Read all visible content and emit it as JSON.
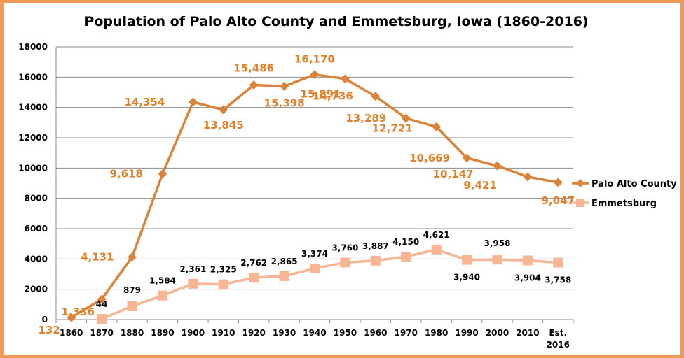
{
  "chart_data": {
    "type": "line",
    "title": "Population of Palo Alto County and Emmetsburg, Iowa (1860-2016)",
    "xlabel": "",
    "ylabel": "",
    "categories": [
      "1860",
      "1870",
      "1880",
      "1890",
      "1900",
      "1910",
      "1920",
      "1930",
      "1940",
      "1950",
      "1960",
      "1970",
      "1980",
      "1990",
      "2000",
      "2010",
      "Est. 2016"
    ],
    "ylim": [
      0,
      18000
    ],
    "yticks": [
      0,
      2000,
      4000,
      6000,
      8000,
      10000,
      12000,
      14000,
      16000,
      18000
    ],
    "grid": true,
    "legend": "right",
    "series": [
      {
        "name": "Palo Alto County",
        "color": "#d9843a",
        "marker": "diamond",
        "values": [
          132,
          1336,
          4131,
          9618,
          14354,
          13845,
          15486,
          15398,
          16170,
          15891,
          14736,
          13289,
          12721,
          10669,
          10147,
          9421,
          9047
        ],
        "labels": [
          "132",
          "1,336",
          "4,131",
          "9,618",
          "14,354",
          "13,845",
          "15,486",
          "15,398",
          "16,170",
          "15,891",
          "14,736",
          "13,289",
          "12,721",
          "10,669",
          "10,147",
          "9,421",
          "9,047"
        ]
      },
      {
        "name": "Emmetsburg",
        "color": "#f7b593",
        "marker": "square",
        "values": [
          null,
          44,
          879,
          1584,
          2361,
          2325,
          2762,
          2865,
          3374,
          3760,
          3887,
          4150,
          4621,
          3940,
          3958,
          3904,
          3758
        ],
        "labels": [
          "",
          "44",
          "879",
          "1,584",
          "2,361",
          "2,325",
          "2,762",
          "2,865",
          "3,374",
          "3,760",
          "3,887",
          "4,150",
          "4,621",
          "3,940",
          "3,958",
          "3,904",
          "3,758"
        ]
      }
    ]
  }
}
